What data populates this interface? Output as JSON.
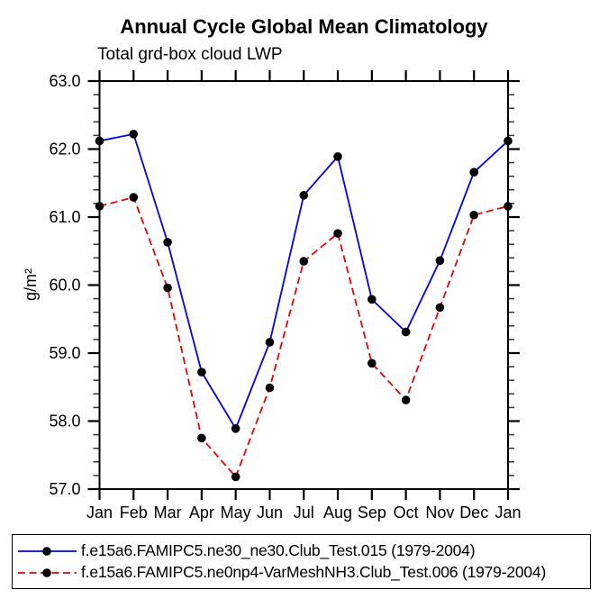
{
  "header": {
    "title": "Annual Cycle Global Mean Climatology",
    "subtitle": "Total grd-box cloud LWP"
  },
  "chart_data": {
    "type": "line",
    "title": "Annual Cycle Global Mean Climatology",
    "subtitle": "Total grd-box cloud LWP",
    "xlabel": "",
    "ylabel": "g/m²",
    "categories": [
      "Jan",
      "Feb",
      "Mar",
      "Apr",
      "May",
      "Jun",
      "Jul",
      "Aug",
      "Sep",
      "Oct",
      "Nov",
      "Dec",
      "Jan"
    ],
    "ylim": [
      57.0,
      63.0
    ],
    "ytick_labels": [
      "57.0",
      "58.0",
      "59.0",
      "60.0",
      "61.0",
      "62.0",
      "63.0"
    ],
    "ytick_values": [
      57.0,
      58.0,
      59.0,
      60.0,
      61.0,
      62.0,
      63.0
    ],
    "ytick_minor_step": 0.2,
    "grid": false,
    "legend_position": "bottom",
    "series": [
      {
        "name": "f.e15a6.FAMIPC5.ne30_ne30.Club_Test.015 (1979-2004)",
        "color": "#0000ee",
        "line_style": "solid",
        "marker": "circle",
        "marker_color": "#000000",
        "values": [
          62.12,
          62.22,
          60.63,
          58.72,
          57.89,
          59.16,
          61.32,
          61.89,
          59.79,
          59.31,
          60.36,
          61.66,
          62.12
        ]
      },
      {
        "name": "f.e15a6.FAMIPC5.ne0np4-VarMeshNH3.Club_Test.006 (1979-2004)",
        "color": "#ee0000",
        "line_style": "dashed",
        "marker": "circle",
        "marker_color": "#000000",
        "values": [
          61.16,
          61.29,
          59.96,
          57.75,
          57.18,
          58.49,
          60.35,
          60.76,
          58.85,
          58.31,
          59.67,
          61.03,
          61.16
        ]
      }
    ]
  },
  "colors": {
    "axis": "#000000",
    "minor_tick": "#333333",
    "background": "#ffffff"
  }
}
